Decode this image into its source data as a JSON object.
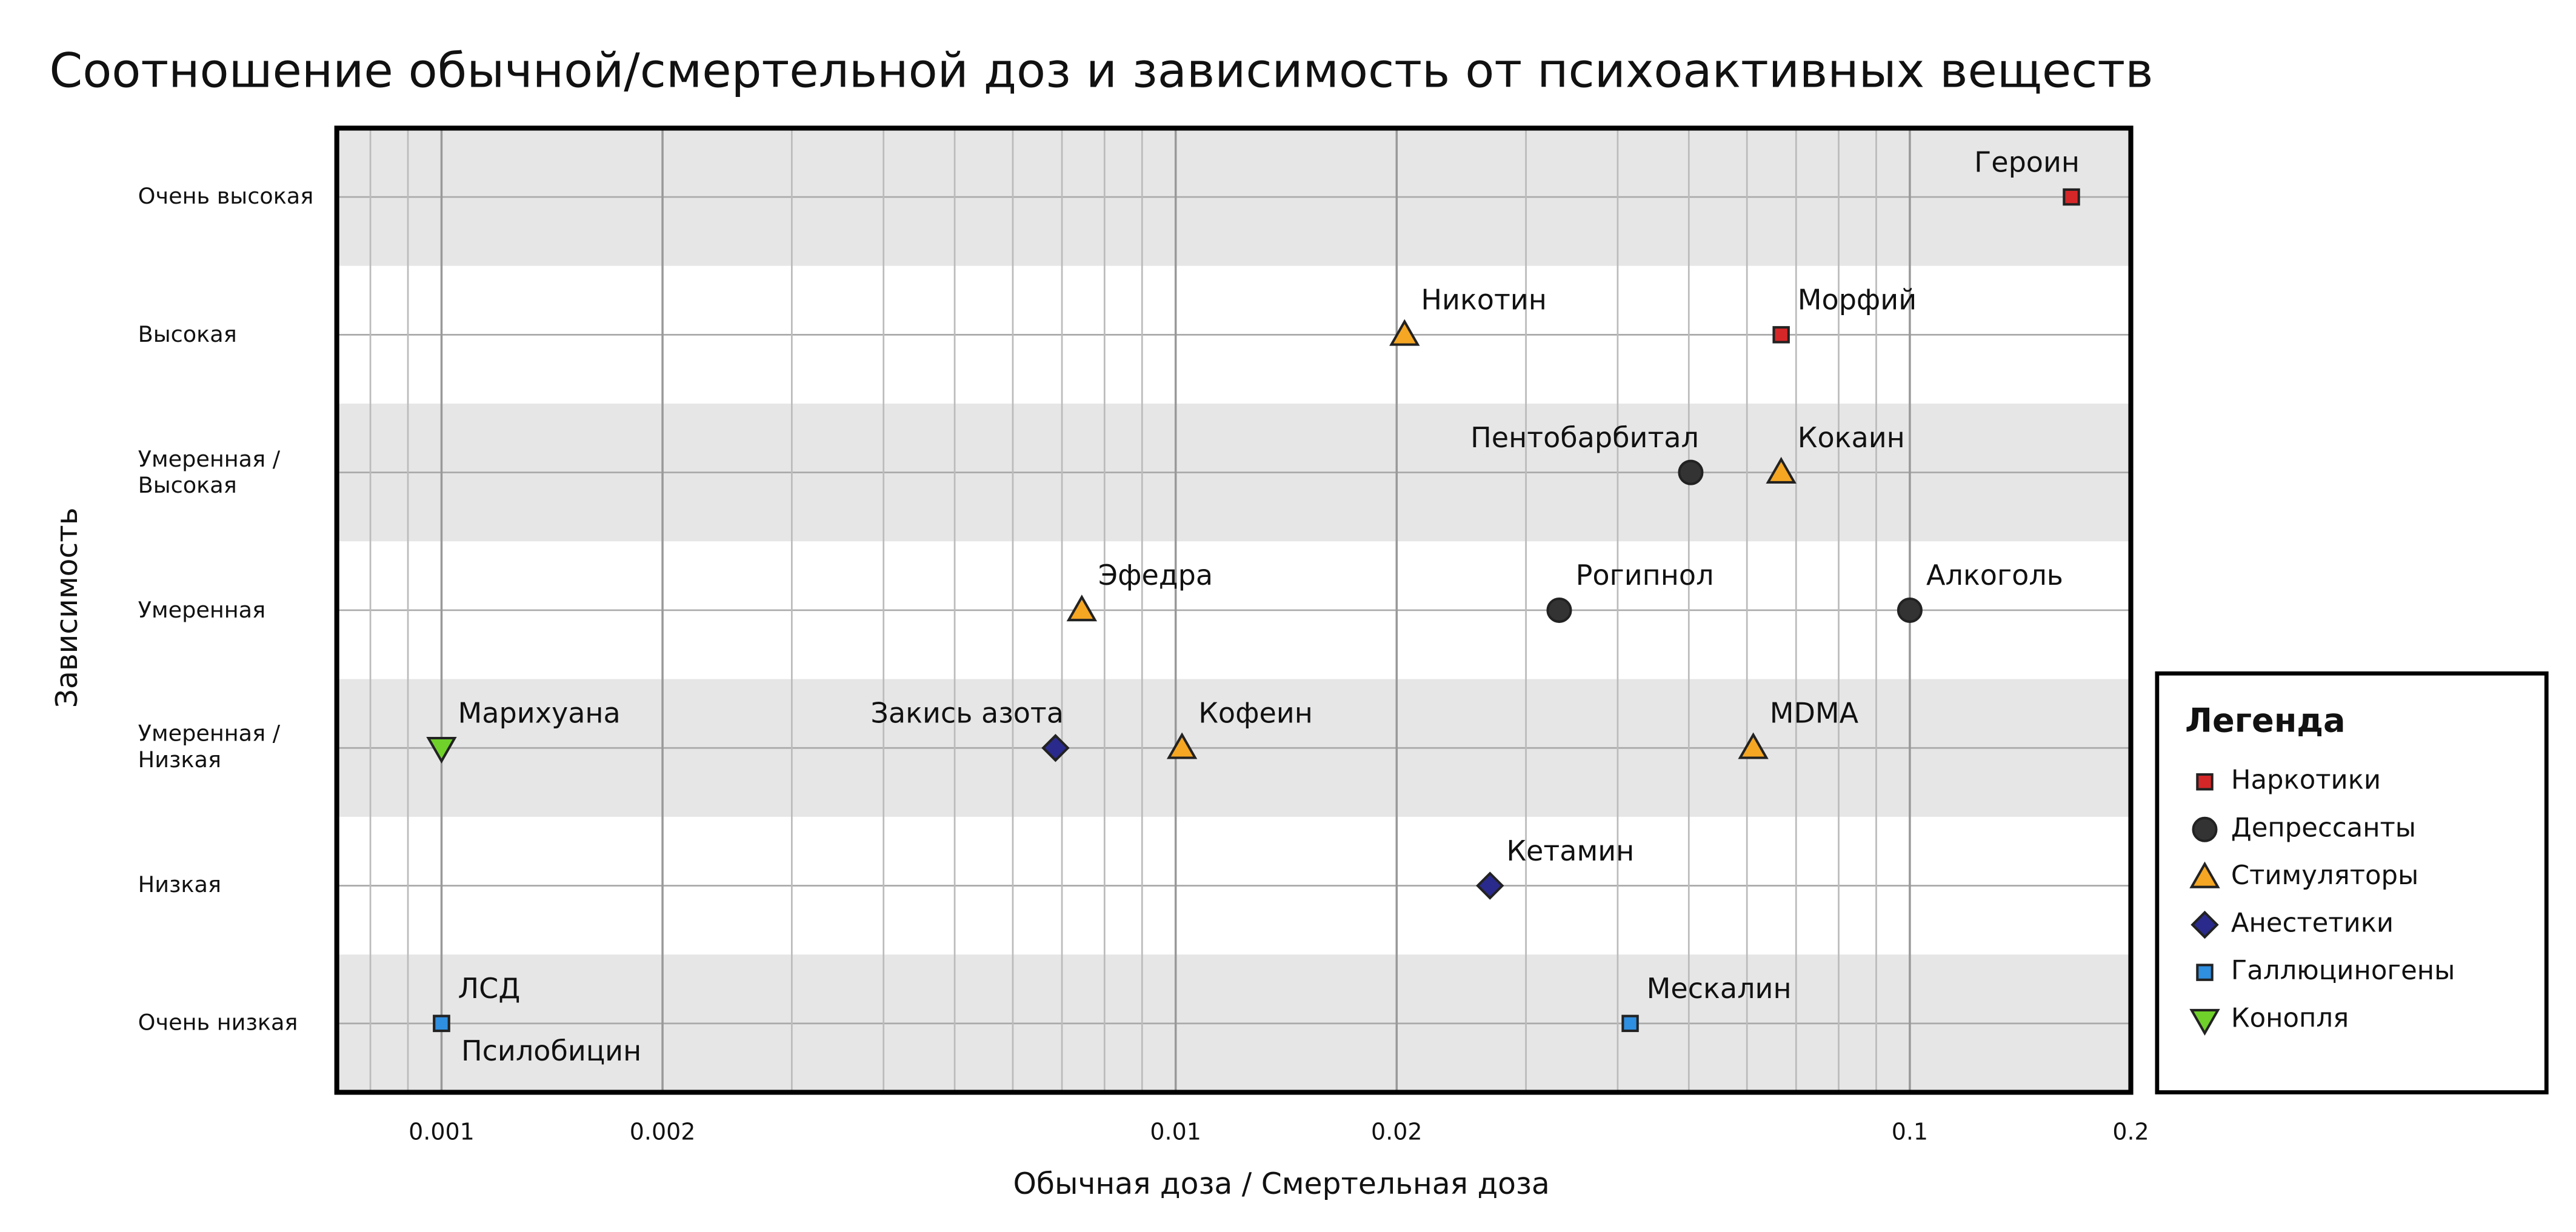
{
  "chart_data": {
    "type": "scatter",
    "title": "Соотношение обычной/смертельной доз и зависимость от психоактивных веществ",
    "x_label": "Обычная доза / Смертельная доза",
    "y_label": "Зависимость",
    "legend_title": "Легенда",
    "x_log": true,
    "grid": true,
    "bands": true,
    "legend": "lower right",
    "xlim": [
      0.00072,
      0.2
    ],
    "xticks": [
      0.001,
      0.002,
      0.01,
      0.02,
      0.1,
      0.2
    ],
    "ylim": [
      0.5,
      7.5
    ],
    "yticks": [
      {
        "value": 1,
        "label": "Очень низкая"
      },
      {
        "value": 2,
        "label": "Низкая"
      },
      {
        "value": 3,
        "label": "Умеренная / Низкая"
      },
      {
        "value": 4,
        "label": "Умеренная"
      },
      {
        "value": 5,
        "label": "Умеренная / Высокая"
      },
      {
        "value": 6,
        "label": "Высокая"
      },
      {
        "value": 7,
        "label": "Очень высокая"
      }
    ],
    "series": [
      {
        "name": "Наркотики",
        "color": "#d62728",
        "marker": "square",
        "labels": [
          "Героин",
          "Морфий"
        ],
        "x": [
          0.166,
          0.0668
        ],
        "values": [
          7,
          6
        ]
      },
      {
        "name": "Депрессанты",
        "color": "#333333",
        "marker": "circle",
        "labels": [
          "Пентобарбитал",
          "Рогипнол",
          "Алкоголь"
        ],
        "x": [
          0.0503,
          0.0333,
          0.1
        ],
        "values": [
          5,
          4,
          4
        ]
      },
      {
        "name": "Стимуляторы",
        "color": "#f5a623",
        "marker": "triangle",
        "labels": [
          "Никотин",
          "Кокаин",
          "Эфедра",
          "Кофеин",
          "MDMA"
        ],
        "x": [
          0.0205,
          0.0668,
          0.00745,
          0.0102,
          0.0612
        ],
        "values": [
          6,
          5,
          4,
          3,
          3
        ]
      },
      {
        "name": "Анестетики",
        "color": "#2a2a8c",
        "marker": "diamond",
        "labels": [
          "Закись азота",
          "Кетамин"
        ],
        "x": [
          0.00686,
          0.0268
        ],
        "values": [
          3,
          2
        ]
      },
      {
        "name": "Галлюциногены",
        "color": "#2f8fe0",
        "marker": "square",
        "labels": [
          "ЛСД",
          "Псилобицин",
          "Мескалин"
        ],
        "x": [
          0.001,
          0.001,
          0.0416
        ],
        "values": [
          1,
          1,
          1
        ]
      },
      {
        "name": "Конопля",
        "color": "#6fd12a",
        "marker": "triangle-down",
        "labels": [
          "Марихуана"
        ],
        "x": [
          0.001
        ],
        "values": [
          3
        ]
      }
    ]
  }
}
